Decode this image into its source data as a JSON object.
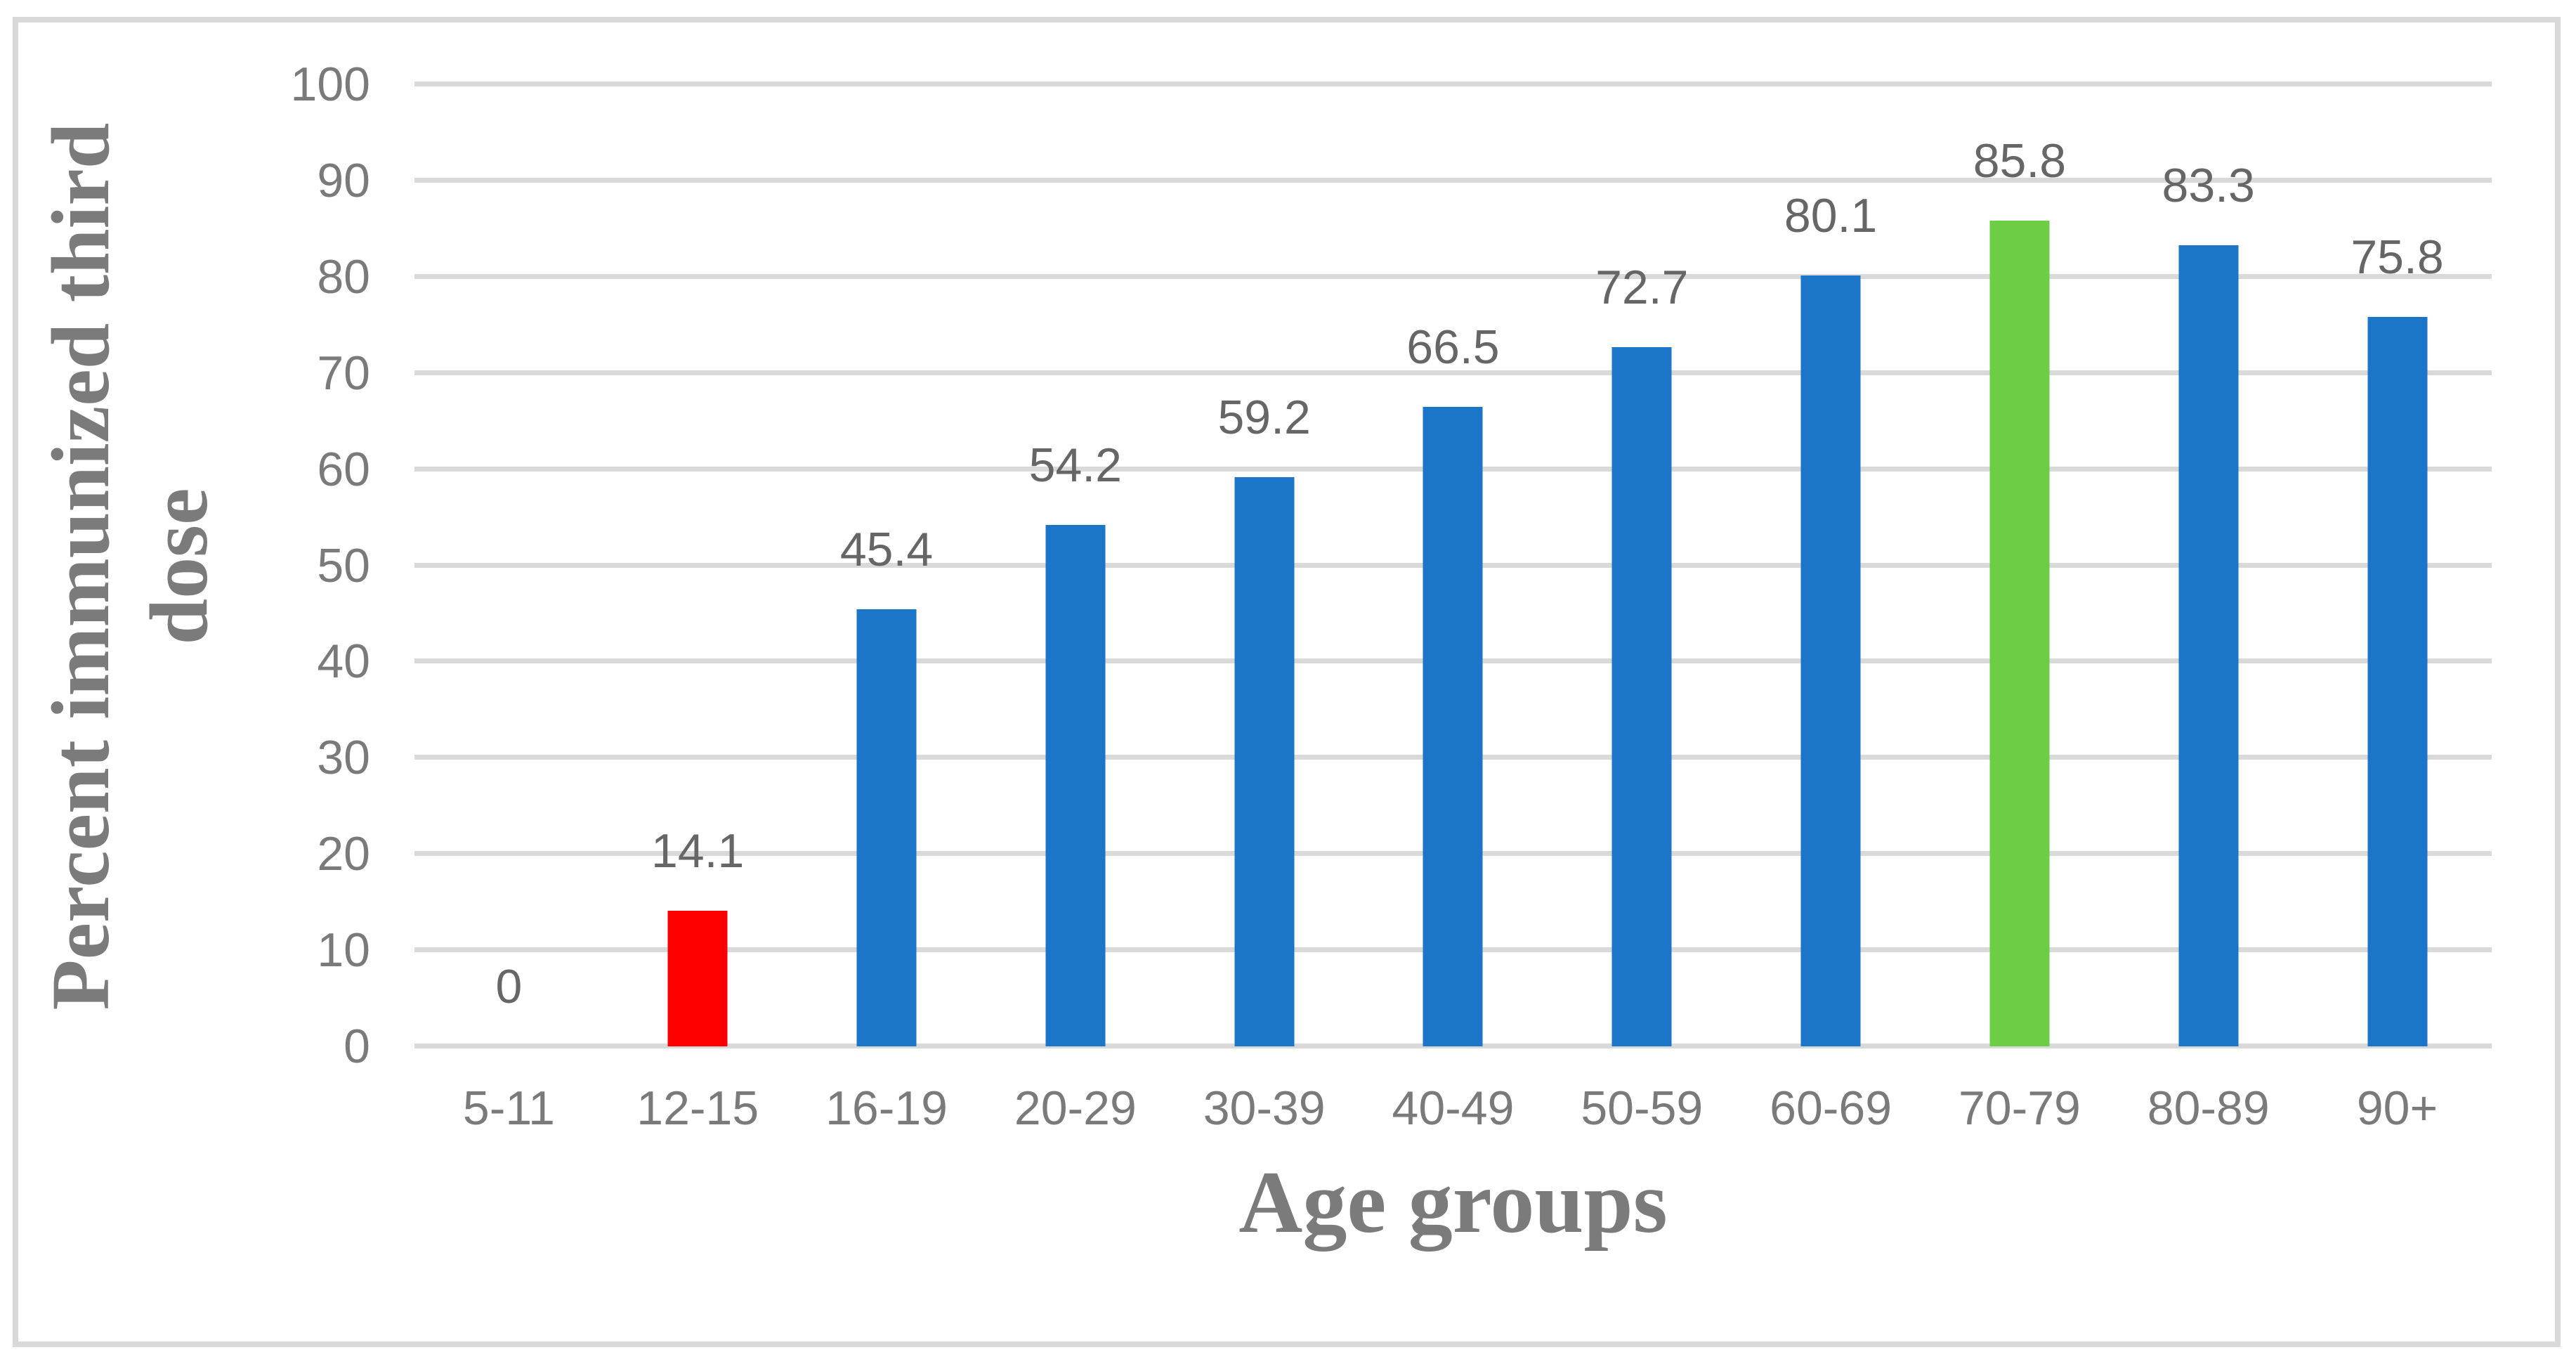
{
  "chart_data": {
    "type": "bar",
    "categories": [
      "5-11",
      "12-15",
      "16-19",
      "20-29",
      "30-39",
      "40-49",
      "50-59",
      "60-69",
      "70-79",
      "80-89",
      "90+"
    ],
    "values": [
      0,
      14.1,
      45.4,
      54.2,
      59.2,
      66.5,
      72.7,
      80.1,
      85.8,
      83.3,
      75.8
    ],
    "data_labels": [
      "0",
      "14.1",
      "45.4",
      "54.2",
      "59.2",
      "66.5",
      "72.7",
      "80.1",
      "85.8",
      "83.3",
      "75.8"
    ],
    "bar_colors": [
      "#1B75C8",
      "#FF0000",
      "#1B75C8",
      "#1B75C8",
      "#1B75C8",
      "#1B75C8",
      "#1B75C8",
      "#1B75C8",
      "#6DCE45",
      "#1B75C8",
      "#1B75C8"
    ],
    "xlabel": "Age groups",
    "ylabel": "Percent immunized third dose",
    "ylabel_lines": [
      "Percent immunized third",
      "dose"
    ],
    "ylim": [
      0,
      100
    ],
    "yticks": [
      0,
      10,
      20,
      30,
      40,
      50,
      60,
      70,
      80,
      90,
      100
    ],
    "grid": "horizontal",
    "legend": "none",
    "colors": {
      "default_bar": "#1B75C8",
      "highlight_low": "#FF0000",
      "highlight_peak": "#6DCE45",
      "gridline": "#D9D9D9",
      "frame_border": "#D9D9D9",
      "axis_tick_text": "#7a7a7a",
      "data_label_text": "#666666",
      "axis_title_text": "#7b7b7b"
    }
  }
}
